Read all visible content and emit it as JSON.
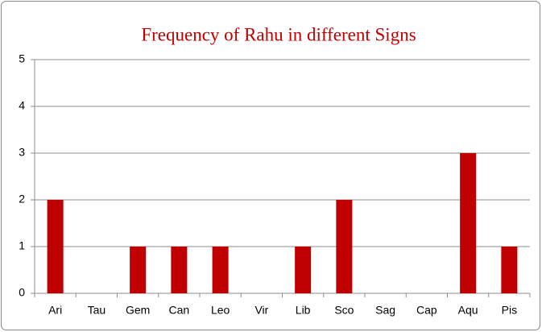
{
  "chart_data": {
    "type": "bar",
    "title": "Frequency of Rahu in different Signs",
    "categories": [
      "Ari",
      "Tau",
      "Gem",
      "Can",
      "Leo",
      "Vir",
      "Lib",
      "Sco",
      "Sag",
      "Cap",
      "Aqu",
      "Pis"
    ],
    "values": [
      2,
      0,
      1,
      1,
      1,
      0,
      1,
      2,
      0,
      0,
      3,
      1
    ],
    "color": "#c00000",
    "ylim": [
      0,
      5
    ],
    "yticks": [
      0,
      1,
      2,
      3,
      4,
      5
    ],
    "grid": true
  }
}
